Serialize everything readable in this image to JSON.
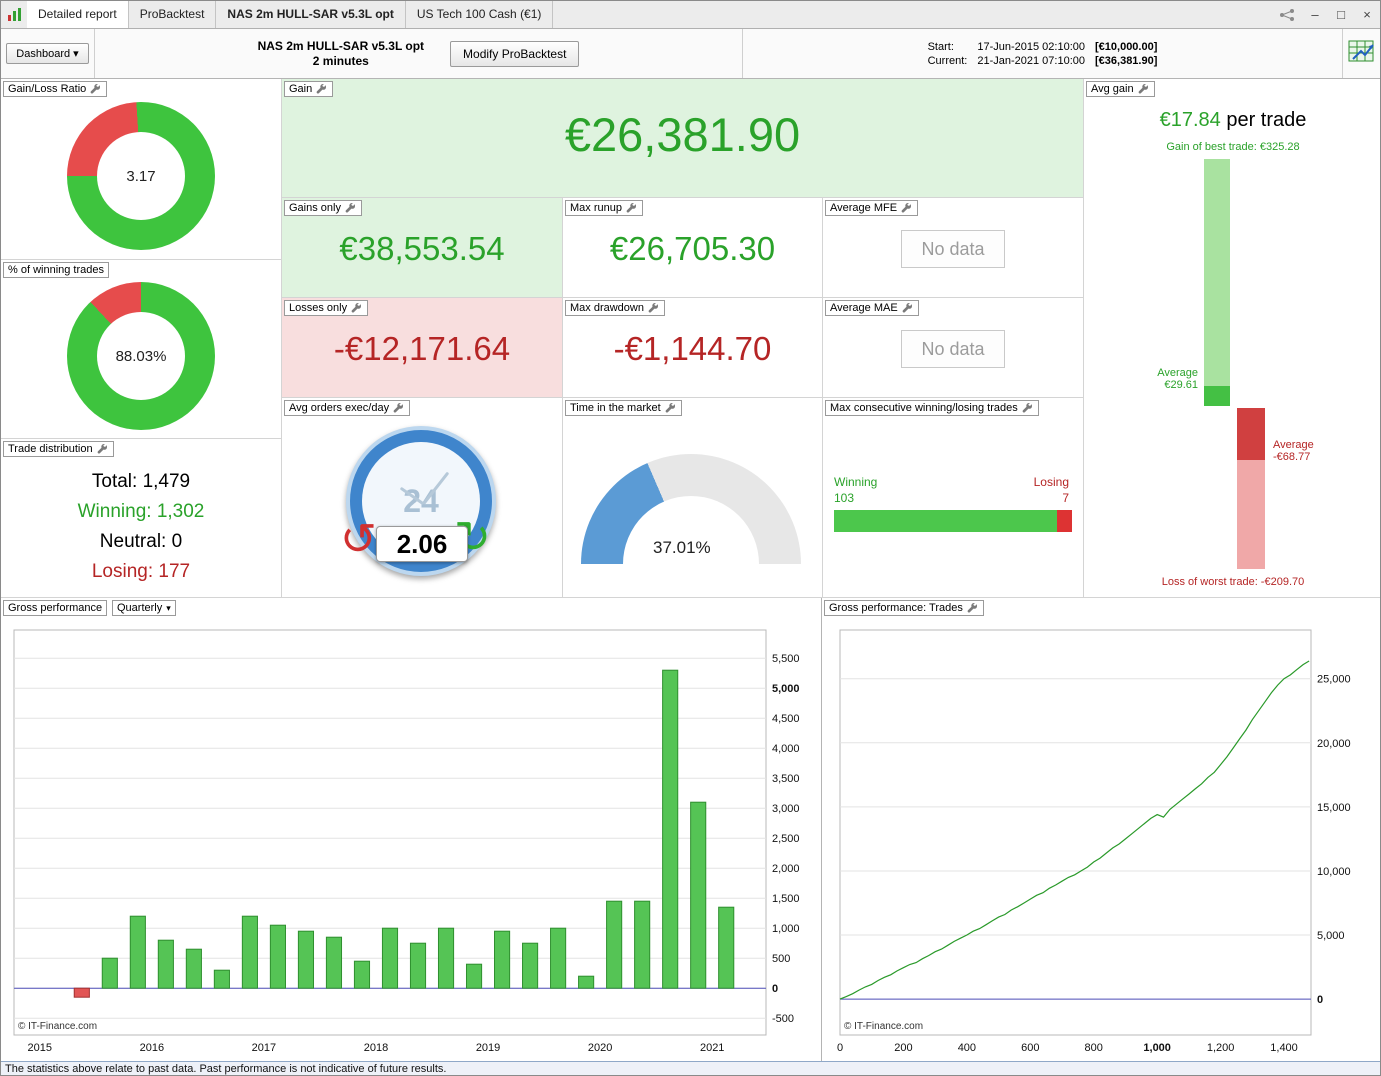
{
  "window": {
    "tabs": [
      {
        "label": "Detailed report"
      },
      {
        "label": "ProBacktest"
      },
      {
        "label": "NAS 2m HULL-SAR v5.3L opt"
      },
      {
        "label": "US Tech 100 Cash (€1)"
      }
    ],
    "controls": {
      "minimize": "–",
      "maximize": "□",
      "close": "×"
    }
  },
  "header": {
    "dashboard_button": "Dashboard",
    "dashboard_caret": "▾",
    "title": "NAS 2m HULL-SAR v5.3L opt",
    "subtitle": "2 minutes",
    "modify_button": "Modify ProBacktest",
    "start": {
      "label": "Start:",
      "datetime": "17-Jun-2015 02:10:00",
      "amount": "[€10,000.00]"
    },
    "current": {
      "label": "Current:",
      "datetime": "21-Jan-2021 07:10:00",
      "amount": "[€36,381.90]"
    }
  },
  "colors": {
    "green_value": "#2aa22a",
    "red_value": "#b52525",
    "green_bg": "#dff3df",
    "red_bg": "#f8dede",
    "donut_green": "#3ec43e",
    "donut_red": "#e64c4c",
    "gauge_blue": "#5b9bd5",
    "bar_green": "#55c455",
    "bar_red": "#e25555"
  },
  "panels": {
    "gain_loss_ratio": {
      "label": "Gain/Loss Ratio",
      "value": "3.17",
      "red_fraction_pct": 24
    },
    "winning_trades_pct": {
      "label": "% of winning trades",
      "value": "88.03%",
      "red_fraction_pct": 11.97
    },
    "trade_distribution": {
      "label": "Trade distribution",
      "rows": [
        {
          "label": "Total:",
          "value": "1,479"
        },
        {
          "label": "Winning:",
          "value": "1,302"
        },
        {
          "label": "Neutral:",
          "value": "0"
        },
        {
          "label": "Losing:",
          "value": "177"
        }
      ]
    },
    "gain": {
      "label": "Gain",
      "value": "€26,381.90"
    },
    "gains_only": {
      "label": "Gains only",
      "value": "€38,553.54"
    },
    "losses_only": {
      "label": "Losses only",
      "value": "-€12,171.64"
    },
    "max_runup": {
      "label": "Max runup",
      "value": "€26,705.30"
    },
    "max_drawdown": {
      "label": "Max drawdown",
      "value": "-€1,144.70"
    },
    "average_mfe": {
      "label": "Average MFE",
      "value": "No data"
    },
    "average_mae": {
      "label": "Average MAE",
      "value": "No data"
    },
    "avg_orders": {
      "label": "Avg orders exec/day",
      "value": "2.06",
      "clock_label": "24",
      "ccw_arrow": "↺",
      "cw_arrow": "↻"
    },
    "time_in_market": {
      "label": "Time in the market",
      "value": "37.01%",
      "pct": 37.01
    },
    "max_consecutive": {
      "label": "Max consecutive winning/losing trades",
      "winning_label": "Winning",
      "winning_value": "103",
      "losing_label": "Losing",
      "losing_value": "7"
    },
    "avg_gain": {
      "label": "Avg gain",
      "value": "€17.84",
      "suffix": " per trade",
      "best_trade_note": "Gain of best trade: €325.28",
      "avg_gain_note": [
        "Average",
        "€29.61"
      ],
      "avg_loss_note": [
        "Average",
        "-€68.77"
      ],
      "worst_trade_note": "Loss of worst trade: -€209.70"
    }
  },
  "footer": {
    "disclaimer": "The statistics above relate to past data. Past performance is not indicative of future results."
  },
  "chart_data": [
    {
      "type": "bar",
      "title": "Gross performance",
      "period": "Quarterly",
      "period_caret": "▾",
      "categories": [
        "Q2 2015",
        "Q3 2015",
        "Q4 2015",
        "Q1 2016",
        "Q2 2016",
        "Q3 2016",
        "Q4 2016",
        "Q1 2017",
        "Q2 2017",
        "Q3 2017",
        "Q4 2017",
        "Q1 2018",
        "Q2 2018",
        "Q3 2018",
        "Q4 2018",
        "Q1 2019",
        "Q2 2019",
        "Q3 2019",
        "Q4 2019",
        "Q1 2020",
        "Q2 2020",
        "Q3 2020",
        "Q4 2020",
        "Q1 2021"
      ],
      "values": [
        -150,
        500,
        1200,
        800,
        650,
        300,
        1200,
        1050,
        950,
        850,
        450,
        1000,
        750,
        1000,
        400,
        950,
        750,
        1000,
        200,
        1450,
        1450,
        5300,
        3100,
        1350
      ],
      "start_time": 2015.25,
      "bar_width_years": 0.135,
      "year_ticks": [
        2015,
        2016,
        2017,
        2018,
        2019,
        2020,
        2021
      ],
      "xlim": [
        2014.77,
        2021.48
      ],
      "ylim": [
        -780,
        5970
      ],
      "ytick_min": -500,
      "ytick_max": 5500,
      "ytick_step": 500,
      "bold_yticks": [
        5000,
        0
      ],
      "grid": true,
      "pos_color": "#55c455",
      "pos_stroke": "#2f8f2f",
      "neg_color": "#e25555",
      "neg_stroke": "#a23030",
      "zero_line_color": "#5050bb",
      "copyright": "© IT-Finance.com"
    },
    {
      "type": "line",
      "title": "Gross performance: Trades",
      "x": [
        0,
        20,
        40,
        60,
        80,
        100,
        120,
        140,
        160,
        180,
        200,
        220,
        240,
        260,
        280,
        300,
        320,
        340,
        360,
        380,
        400,
        420,
        440,
        460,
        480,
        500,
        520,
        540,
        560,
        580,
        600,
        620,
        640,
        660,
        680,
        700,
        720,
        740,
        760,
        780,
        800,
        820,
        840,
        860,
        880,
        900,
        920,
        940,
        960,
        980,
        1000,
        1020,
        1040,
        1060,
        1080,
        1100,
        1120,
        1140,
        1160,
        1180,
        1200,
        1220,
        1240,
        1260,
        1280,
        1300,
        1320,
        1340,
        1360,
        1380,
        1400,
        1420,
        1440,
        1460,
        1479
      ],
      "y": [
        0,
        200,
        420,
        700,
        950,
        1150,
        1450,
        1700,
        1900,
        2200,
        2450,
        2700,
        2850,
        3150,
        3400,
        3700,
        3900,
        4200,
        4500,
        4750,
        5000,
        5300,
        5500,
        5800,
        6100,
        6400,
        6600,
        6950,
        7200,
        7500,
        7800,
        8100,
        8300,
        8650,
        8900,
        9200,
        9500,
        9700,
        10000,
        10300,
        10700,
        11000,
        11400,
        11800,
        12100,
        12500,
        12900,
        13300,
        13700,
        14100,
        14400,
        14200,
        14800,
        15200,
        15600,
        16000,
        16400,
        16800,
        17300,
        17700,
        18300,
        18900,
        19600,
        20300,
        21000,
        21800,
        22500,
        23200,
        23900,
        24500,
        25000,
        25300,
        25700,
        26100,
        26382
      ],
      "xticks": [
        0,
        200,
        400,
        600,
        800,
        1000,
        1200,
        1400
      ],
      "bold_xticks": [
        1000
      ],
      "yticks": [
        0,
        5000,
        10000,
        15000,
        20000,
        25000
      ],
      "bold_yticks": [
        0
      ],
      "xlim": [
        0,
        1485
      ],
      "ylim": [
        -2800,
        28800
      ],
      "grid": true,
      "line_color": "#2a9a2a",
      "zero_line_color": "#5050bb",
      "copyright": "© IT-Finance.com"
    }
  ]
}
